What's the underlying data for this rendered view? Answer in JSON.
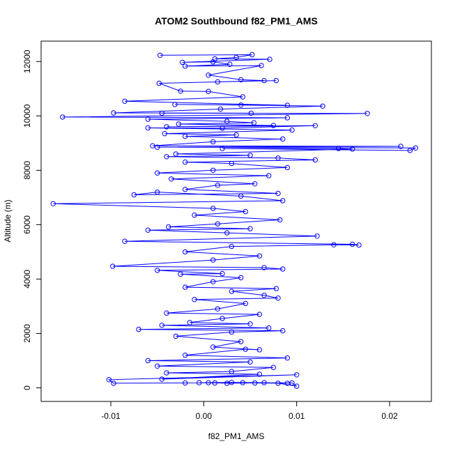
{
  "chart_data": {
    "type": "line",
    "title": "ATOM2 Southbound f82_PM1_AMS",
    "xlabel": "f82_PM1_AMS",
    "ylabel": "Altitude (m)",
    "xlim": [
      -0.0175,
      0.0245
    ],
    "ylim": [
      -500,
      12750
    ],
    "xticks": [
      -0.01,
      0.0,
      0.01,
      0.02
    ],
    "xtick_labels": [
      "-0.01",
      "0.00",
      "0.01",
      "0.02"
    ],
    "yticks": [
      0,
      2000,
      4000,
      6000,
      8000,
      10000,
      12000
    ],
    "ytick_labels": [
      "0",
      "2000",
      "4000",
      "6000",
      "8000",
      "10000",
      "12000"
    ],
    "grid": false,
    "series": [
      {
        "color": "#0000ff",
        "marker": "open-circle",
        "points": [
          [
            -0.0047,
            12230
          ],
          [
            0.0052,
            12250
          ],
          [
            0.0035,
            12150
          ],
          [
            0.0012,
            12100
          ],
          [
            0.0071,
            12080
          ],
          [
            -0.0023,
            11970
          ],
          [
            0.001,
            11990
          ],
          [
            0.0028,
            11900
          ],
          [
            -0.002,
            11830
          ],
          [
            0.0062,
            11850
          ],
          [
            0.0005,
            11500
          ],
          [
            0.004,
            11330
          ],
          [
            0.0065,
            11300
          ],
          [
            0.0015,
            11250
          ],
          [
            0.0078,
            11300
          ],
          [
            -0.0048,
            11200
          ],
          [
            -0.0025,
            10910
          ],
          [
            0.0005,
            10900
          ],
          [
            0.0042,
            10700
          ],
          [
            -0.0085,
            10540
          ],
          [
            0.009,
            10390
          ],
          [
            -0.0031,
            10420
          ],
          [
            0.004,
            10400
          ],
          [
            0.0128,
            10360
          ],
          [
            0.0018,
            10250
          ],
          [
            -0.0097,
            10110
          ],
          [
            0.0051,
            10100
          ],
          [
            -0.0045,
            10100
          ],
          [
            0.0176,
            10090
          ],
          [
            -0.0152,
            9960
          ],
          [
            0.009,
            9930
          ],
          [
            -0.006,
            9880
          ],
          [
            0.0025,
            9800
          ],
          [
            0.0054,
            9750
          ],
          [
            -0.0027,
            9700
          ],
          [
            0.0075,
            9650
          ],
          [
            -0.004,
            9600
          ],
          [
            0.012,
            9640
          ],
          [
            0.002,
            9550
          ],
          [
            -0.006,
            9560
          ],
          [
            0.0095,
            9480
          ],
          [
            -0.0042,
            9350
          ],
          [
            0.0035,
            9300
          ],
          [
            -0.002,
            9250
          ],
          [
            0.0085,
            9150
          ],
          [
            0.001,
            9050
          ],
          [
            -0.0055,
            8900
          ],
          [
            0.0212,
            8880
          ],
          [
            -0.005,
            8850
          ],
          [
            0.0228,
            8820
          ],
          [
            0.0222,
            8730
          ],
          [
            0.002,
            8800
          ],
          [
            0.0145,
            8800
          ],
          [
            0.016,
            8780
          ],
          [
            -0.003,
            8600
          ],
          [
            0.005,
            8550
          ],
          [
            -0.004,
            8500
          ],
          [
            0.008,
            8450
          ],
          [
            0.012,
            8380
          ],
          [
            -0.002,
            8300
          ],
          [
            0.003,
            8250
          ],
          [
            0.009,
            8100
          ],
          [
            0.001,
            8000
          ],
          [
            -0.005,
            7900
          ],
          [
            0.007,
            7800
          ],
          [
            -0.0035,
            7680
          ],
          [
            0.0055,
            7500
          ],
          [
            0.0015,
            7450
          ],
          [
            -0.002,
            7300
          ],
          [
            0.008,
            7150
          ],
          [
            -0.0075,
            7100
          ],
          [
            -0.005,
            7200
          ],
          [
            0.004,
            7050
          ],
          [
            0.0085,
            6880
          ],
          [
            -0.0162,
            6770
          ],
          [
            0.001,
            6600
          ],
          [
            0.0045,
            6480
          ],
          [
            -0.001,
            6350
          ],
          [
            0.0082,
            6180
          ],
          [
            0.0015,
            6030
          ],
          [
            -0.0038,
            5920
          ],
          [
            0.005,
            5850
          ],
          [
            -0.006,
            5800
          ],
          [
            0.0025,
            5700
          ],
          [
            0.0122,
            5580
          ],
          [
            -0.0085,
            5390
          ],
          [
            0.016,
            5280
          ],
          [
            0.0167,
            5250
          ],
          [
            0.014,
            5260
          ],
          [
            0.003,
            5200
          ],
          [
            -0.002,
            5000
          ],
          [
            0.006,
            4850
          ],
          [
            0.001,
            4700
          ],
          [
            -0.0098,
            4470
          ],
          [
            0.0065,
            4420
          ],
          [
            0.0085,
            4370
          ],
          [
            -0.005,
            4320
          ],
          [
            0.002,
            4200
          ],
          [
            -0.0025,
            4180
          ],
          [
            0.004,
            4050
          ],
          [
            0.001,
            3900
          ],
          [
            -0.002,
            3700
          ],
          [
            0.0078,
            3650
          ],
          [
            0.003,
            3550
          ],
          [
            0.0065,
            3400
          ],
          [
            0.008,
            3300
          ],
          [
            -0.001,
            3250
          ],
          [
            0.0045,
            3100
          ],
          [
            0.0015,
            2900
          ],
          [
            -0.004,
            2750
          ],
          [
            0.006,
            2700
          ],
          [
            0.002,
            2550
          ],
          [
            -0.0015,
            2400
          ],
          [
            0.005,
            2350
          ],
          [
            -0.0045,
            2300
          ],
          [
            0.007,
            2200
          ],
          [
            -0.007,
            2150
          ],
          [
            0.0085,
            2100
          ],
          [
            0.003,
            2050
          ],
          [
            -0.003,
            1900
          ],
          [
            0.004,
            1700
          ],
          [
            0.001,
            1500
          ],
          [
            0.006,
            1400
          ],
          [
            0.0045,
            1420
          ],
          [
            -0.002,
            1200
          ],
          [
            0.009,
            1100
          ],
          [
            -0.006,
            1000
          ],
          [
            0.005,
            950
          ],
          [
            -0.005,
            800
          ],
          [
            0.0075,
            750
          ],
          [
            0.003,
            600
          ],
          [
            -0.004,
            550
          ],
          [
            0.006,
            500
          ],
          [
            -0.0045,
            320
          ],
          [
            0.01,
            480
          ],
          [
            -0.0102,
            300
          ],
          [
            -0.0097,
            170
          ],
          [
            -0.002,
            180
          ],
          [
            0.0005,
            190
          ],
          [
            0.0025,
            170
          ],
          [
            0.0055,
            180
          ],
          [
            0.008,
            170
          ],
          [
            0.01,
            60
          ],
          [
            0.0095,
            180
          ],
          [
            0.0042,
            190
          ],
          [
            0.0012,
            180
          ],
          [
            -0.0005,
            190
          ],
          [
            0.003,
            200
          ],
          [
            0.0065,
            190
          ],
          [
            0.009,
            170
          ]
        ]
      }
    ]
  }
}
